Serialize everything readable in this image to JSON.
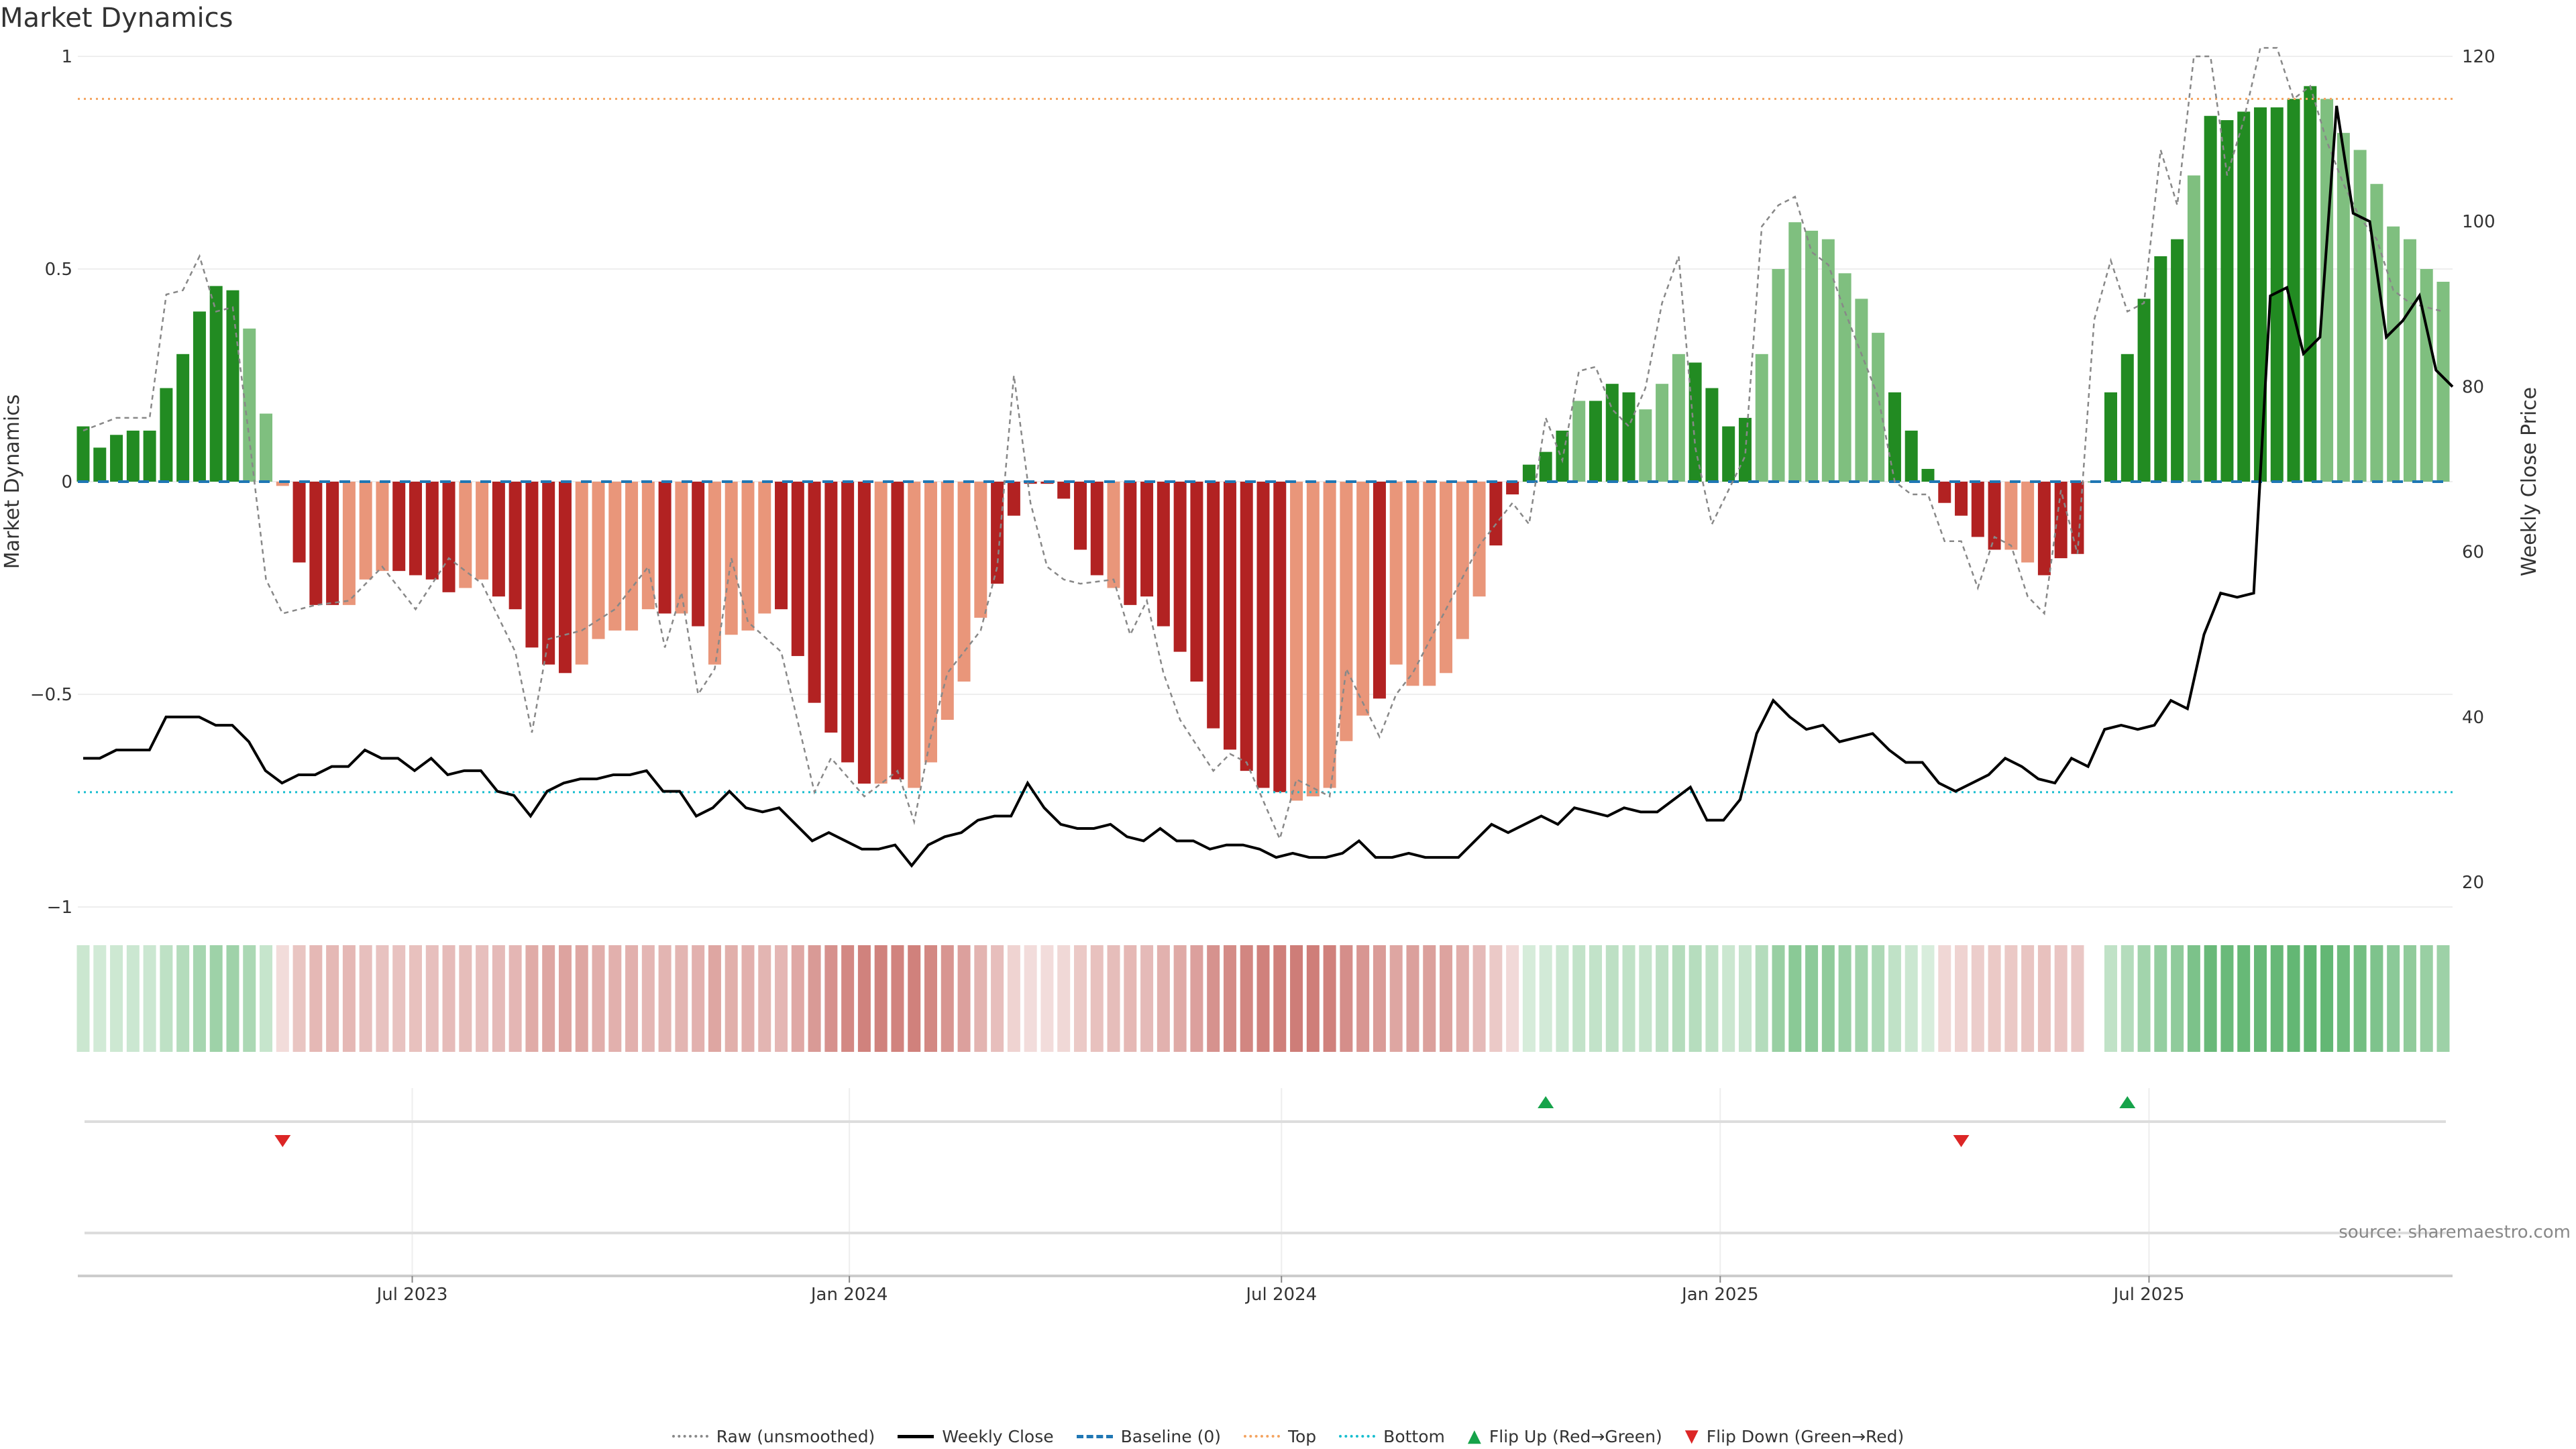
{
  "chart_data": {
    "type": "bar",
    "title": "Market Dynamics",
    "ylabel": "Market Dynamics",
    "ylabel_right": "Weekly Close Price",
    "ylim": [
      -1,
      1
    ],
    "ylim_right": [
      20,
      120
    ],
    "yticks": [
      {
        "v": 1,
        "label": "1"
      },
      {
        "v": 0.5,
        "label": "0.5"
      },
      {
        "v": 0,
        "label": "0"
      },
      {
        "v": -0.5,
        "label": "−0.5"
      },
      {
        "v": -1,
        "label": "−1"
      }
    ],
    "yticks_right": [
      {
        "v": 120,
        "label": "120"
      },
      {
        "v": 100,
        "label": "100"
      },
      {
        "v": 80,
        "label": "80"
      },
      {
        "v": 60,
        "label": "60"
      },
      {
        "v": 40,
        "label": "40"
      },
      {
        "v": 20,
        "label": "20"
      }
    ],
    "xticks": [
      {
        "week": 19.8,
        "label": "Jul 2023"
      },
      {
        "week": 46.1,
        "label": "Jan 2024"
      },
      {
        "week": 72.1,
        "label": "Jul 2024"
      },
      {
        "week": 98.5,
        "label": "Jan 2025"
      },
      {
        "week": 124.3,
        "label": "Jul 2025"
      }
    ],
    "top_level": 0.9,
    "bottom_level": -0.73,
    "baseline": 0,
    "bars": [
      0.13,
      0.08,
      0.11,
      0.12,
      0.12,
      0.22,
      0.3,
      0.4,
      0.46,
      0.45,
      0.36,
      0.16,
      -0.01,
      -0.19,
      -0.29,
      -0.29,
      -0.29,
      -0.23,
      -0.21,
      -0.21,
      -0.22,
      -0.23,
      -0.26,
      -0.25,
      -0.23,
      -0.27,
      -0.3,
      -0.39,
      -0.43,
      -0.45,
      -0.43,
      -0.37,
      -0.35,
      -0.35,
      -0.3,
      -0.31,
      -0.31,
      -0.34,
      -0.43,
      -0.36,
      -0.35,
      -0.31,
      -0.3,
      -0.41,
      -0.52,
      -0.59,
      -0.66,
      -0.71,
      -0.71,
      -0.7,
      -0.72,
      -0.66,
      -0.56,
      -0.47,
      -0.32,
      -0.24,
      -0.08,
      -0.005,
      -0.005,
      -0.04,
      -0.16,
      -0.22,
      -0.25,
      -0.29,
      -0.27,
      -0.34,
      -0.4,
      -0.47,
      -0.58,
      -0.63,
      -0.68,
      -0.72,
      -0.73,
      -0.75,
      -0.74,
      -0.72,
      -0.61,
      -0.55,
      -0.51,
      -0.43,
      -0.48,
      -0.48,
      -0.45,
      -0.37,
      -0.27,
      -0.15,
      -0.03,
      0.04,
      0.07,
      0.12,
      0.19,
      0.19,
      0.23,
      0.21,
      0.17,
      0.23,
      0.3,
      0.28,
      0.22,
      0.13,
      0.15,
      0.3,
      0.5,
      0.61,
      0.59,
      0.57,
      0.49,
      0.43,
      0.35,
      0.21,
      0.12,
      0.03,
      -0.05,
      -0.08,
      -0.13,
      -0.16,
      -0.16,
      -0.19,
      -0.22,
      -0.18,
      -0.17,
      0,
      0.21,
      0.3,
      0.43,
      0.53,
      0.57,
      0.72,
      0.86,
      0.85,
      0.87,
      0.88,
      0.88,
      0.9,
      0.93,
      0.9,
      0.82,
      0.78,
      0.7,
      0.6,
      0.57,
      0.5,
      0.47
    ],
    "bar_strength": "ddddddddddllldddlllddddlldddddllllldldllllddddddldllllldddddddlddddddddddllllldlllllldddddldddlllddddlllllllldddddddlldddddddddldddddddlllllll",
    "weekly_close": [
      35,
      35,
      36,
      36,
      36,
      40,
      40,
      40,
      39,
      39,
      37,
      33.5,
      32,
      33,
      33,
      34,
      34,
      36,
      35,
      35,
      33.5,
      35,
      33,
      33.5,
      33.5,
      31,
      30.5,
      28,
      31,
      32,
      32.5,
      32.5,
      33,
      33,
      33.5,
      31,
      31,
      28,
      29,
      31,
      29,
      28.5,
      29,
      27,
      25,
      26,
      25,
      24,
      24,
      24.5,
      22,
      24.5,
      25.5,
      26,
      27.5,
      28,
      28,
      32,
      29,
      27,
      26.5,
      26.5,
      27,
      25.5,
      25,
      26.5,
      25,
      25,
      24,
      24.5,
      24.5,
      24,
      23,
      23.5,
      23,
      23,
      23.5,
      25,
      23,
      23,
      23.5,
      23,
      23,
      23,
      25,
      27,
      26,
      27,
      28,
      27,
      29,
      28.5,
      28,
      29,
      28.5,
      28.5,
      30,
      31.5,
      27.5,
      27.5,
      30,
      38,
      42,
      40,
      38.5,
      39,
      37,
      37.5,
      38,
      36,
      34.5,
      34.5,
      32,
      31,
      32,
      33,
      35,
      34,
      32.5,
      32,
      35,
      34,
      38.5,
      39,
      38.5,
      39,
      42,
      41,
      50,
      55,
      54.5,
      55,
      91,
      92,
      84,
      86,
      114,
      101,
      100,
      86,
      88,
      91,
      82,
      80
    ],
    "raw_unsmoothed": [
      [
        0,
        0.12
      ],
      [
        2,
        0.15
      ],
      [
        4,
        0.15
      ],
      [
        5,
        0.44
      ],
      [
        6,
        0.45
      ],
      [
        7,
        0.53
      ],
      [
        8,
        0.4
      ],
      [
        9,
        0.41
      ],
      [
        10,
        0.1
      ],
      [
        11,
        -0.23
      ],
      [
        12,
        -0.31
      ],
      [
        14,
        -0.29
      ],
      [
        16,
        -0.28
      ],
      [
        18,
        -0.2
      ],
      [
        20,
        -0.3
      ],
      [
        22,
        -0.18
      ],
      [
        24,
        -0.24
      ],
      [
        26,
        -0.4
      ],
      [
        27,
        -0.59
      ],
      [
        28,
        -0.37
      ],
      [
        30,
        -0.35
      ],
      [
        32,
        -0.3
      ],
      [
        34,
        -0.2
      ],
      [
        35,
        -0.39
      ],
      [
        36,
        -0.26
      ],
      [
        37,
        -0.5
      ],
      [
        38,
        -0.44
      ],
      [
        39,
        -0.18
      ],
      [
        40,
        -0.33
      ],
      [
        42,
        -0.4
      ],
      [
        44,
        -0.73
      ],
      [
        45,
        -0.65
      ],
      [
        47,
        -0.74
      ],
      [
        49,
        -0.68
      ],
      [
        50,
        -0.8
      ],
      [
        51,
        -0.6
      ],
      [
        52,
        -0.45
      ],
      [
        54,
        -0.35
      ],
      [
        55,
        -0.2
      ],
      [
        56,
        0.25
      ],
      [
        57,
        -0.05
      ],
      [
        58,
        -0.2
      ],
      [
        59,
        -0.23
      ],
      [
        60,
        -0.24
      ],
      [
        62,
        -0.23
      ],
      [
        63,
        -0.36
      ],
      [
        64,
        -0.28
      ],
      [
        65,
        -0.45
      ],
      [
        66,
        -0.56
      ],
      [
        68,
        -0.68
      ],
      [
        69,
        -0.64
      ],
      [
        70,
        -0.66
      ],
      [
        72,
        -0.84
      ],
      [
        73,
        -0.7
      ],
      [
        75,
        -0.74
      ],
      [
        76,
        -0.44
      ],
      [
        78,
        -0.6
      ],
      [
        79,
        -0.5
      ],
      [
        80,
        -0.45
      ],
      [
        82,
        -0.3
      ],
      [
        84,
        -0.15
      ],
      [
        86,
        -0.05
      ],
      [
        87,
        -0.1
      ],
      [
        88,
        0.15
      ],
      [
        89,
        0.05
      ],
      [
        90,
        0.26
      ],
      [
        91,
        0.27
      ],
      [
        92,
        0.17
      ],
      [
        93,
        0.13
      ],
      [
        94,
        0.22
      ],
      [
        95,
        0.42
      ],
      [
        96,
        0.53
      ],
      [
        97,
        0.08
      ],
      [
        98,
        -0.1
      ],
      [
        100,
        0.06
      ],
      [
        101,
        0.6
      ],
      [
        102,
        0.65
      ],
      [
        103,
        0.67
      ],
      [
        104,
        0.54
      ],
      [
        105,
        0.51
      ],
      [
        106,
        0.4
      ],
      [
        107,
        0.3
      ],
      [
        108,
        0.2
      ],
      [
        109,
        0.0
      ],
      [
        110,
        -0.03
      ],
      [
        111,
        -0.03
      ],
      [
        112,
        -0.14
      ],
      [
        113,
        -0.14
      ],
      [
        114,
        -0.25
      ],
      [
        115,
        -0.13
      ],
      [
        116,
        -0.15
      ],
      [
        117,
        -0.27
      ],
      [
        118,
        -0.31
      ],
      [
        119,
        -0.02
      ],
      [
        120,
        -0.17
      ],
      [
        121,
        0.38
      ],
      [
        122,
        0.52
      ],
      [
        123,
        0.4
      ],
      [
        124,
        0.42
      ],
      [
        125,
        0.78
      ],
      [
        126,
        0.65
      ],
      [
        127,
        1.0
      ],
      [
        128,
        1.0
      ],
      [
        129,
        0.72
      ],
      [
        130,
        0.85
      ],
      [
        131,
        1.02
      ],
      [
        132,
        1.02
      ],
      [
        133,
        0.9
      ],
      [
        134,
        0.93
      ],
      [
        135,
        0.8
      ],
      [
        136,
        0.7
      ],
      [
        137,
        0.62
      ],
      [
        138,
        0.57
      ],
      [
        139,
        0.45
      ],
      [
        140,
        0.42
      ],
      [
        142,
        0.4
      ]
    ],
    "flips": [
      {
        "week": 12,
        "type": "down"
      },
      {
        "week": 88,
        "type": "up"
      },
      {
        "week": 113,
        "type": "down"
      },
      {
        "week": 123,
        "type": "up"
      }
    ],
    "colors": {
      "strong_up": "#228b22",
      "weak_up": "#7fbf7f",
      "strong_down": "#b22222",
      "weak_down": "#e9967a",
      "close": "#000000",
      "raw": "#888888",
      "baseline": "#1f77b4",
      "top": "#f4a460",
      "bottom": "#17becf",
      "flip_up": "#16a34a",
      "flip_down": "#dc2626"
    },
    "legend": {
      "raw": "Raw (unsmoothed)",
      "close": "Weekly Close",
      "baseline": "Baseline (0)",
      "top": "Top",
      "bottom": "Bottom",
      "flip_up": "Flip Up (Red→Green)",
      "flip_down": "Flip Down (Green→Red)"
    },
    "legend_position": "bottom-center"
  },
  "source": "source: sharemaestro.com"
}
